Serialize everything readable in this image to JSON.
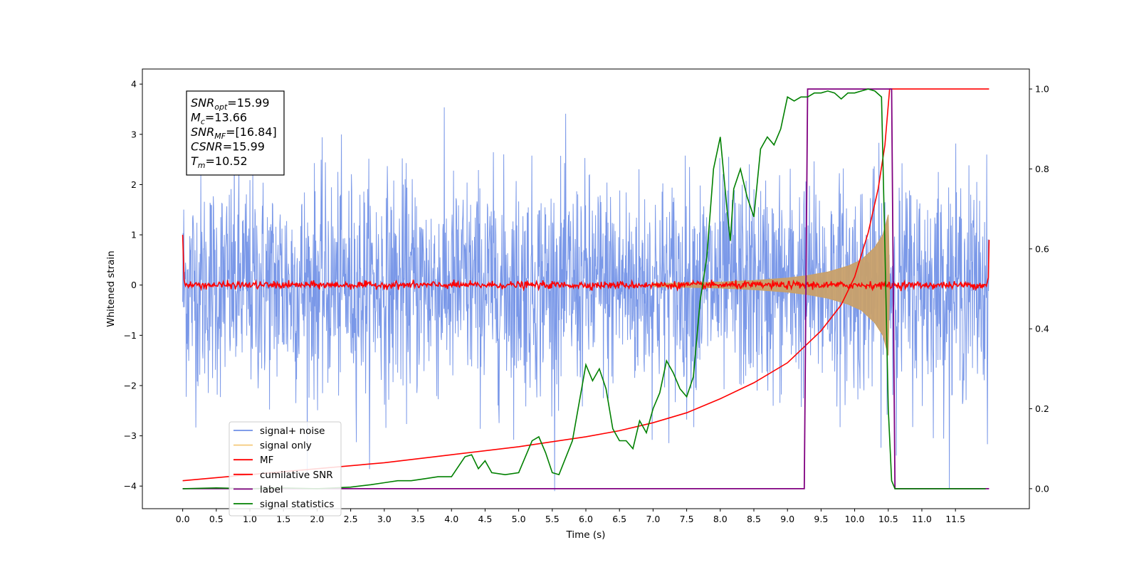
{
  "chart_data": {
    "type": "line",
    "xlabel": "Time (s)",
    "ylabel": "Whitened strain",
    "xlim": [
      -0.6,
      12.6
    ],
    "ylim_left": [
      -4.45,
      4.3
    ],
    "ylim_right": [
      -0.05,
      1.05
    ],
    "x_ticks": [
      "0.0",
      "0.5",
      "1.0",
      "1.5",
      "2.0",
      "2.5",
      "3.0",
      "3.5",
      "4.0",
      "4.5",
      "5.0",
      "5.5",
      "6.0",
      "6.5",
      "7.0",
      "7.5",
      "8.0",
      "8.5",
      "9.0",
      "9.5",
      "10.0",
      "10.5",
      "11.0",
      "11.5"
    ],
    "y_ticks_left": [
      "−4",
      "−3",
      "−2",
      "−1",
      "0",
      "1",
      "2",
      "3",
      "4"
    ],
    "y_ticks_right": [
      "0.0",
      "0.2",
      "0.4",
      "0.6",
      "0.8",
      "1.0"
    ],
    "annotation": {
      "lines": [
        {
          "main": "SNR",
          "sub": "opt",
          "rest": "=15.99"
        },
        {
          "main": "M",
          "sub": "c",
          "rest": "=13.66"
        },
        {
          "main": "SNR",
          "sub": "MF",
          "rest": "=[16.84]"
        },
        {
          "main": "CSNR",
          "sub": "",
          "rest": "=15.99"
        },
        {
          "main": "T",
          "sub": "m",
          "rest": "=10.52"
        }
      ]
    },
    "legend": {
      "placement": "lower-left",
      "entries": [
        {
          "label": "signal+ noise",
          "color": "#6f8fe6"
        },
        {
          "label": "signal only",
          "color": "#f5c97a"
        },
        {
          "label": "MF",
          "color": "#ff0000"
        },
        {
          "label": "cumilative SNR",
          "color": "#ff0000"
        },
        {
          "label": "label",
          "color": "#800080"
        },
        {
          "label": "signal statistics",
          "color": "#008000"
        }
      ]
    },
    "series": [
      {
        "name": "signal+ noise",
        "axis": "left",
        "color": "#6f8fe6",
        "style": "dense noise band",
        "amplitude": 1.5,
        "x_range": [
          0.0,
          12.0
        ]
      },
      {
        "name": "signal only",
        "axis": "left",
        "color": "#c8a06a",
        "style": "chirp envelope",
        "x": [
          7.0,
          8.0,
          8.5,
          9.0,
          9.3,
          9.6,
          9.9,
          10.1,
          10.3,
          10.42,
          10.5,
          10.52
        ],
        "envelope": [
          0.03,
          0.06,
          0.09,
          0.14,
          0.19,
          0.26,
          0.38,
          0.5,
          0.75,
          1.0,
          1.4,
          0.0
        ]
      },
      {
        "name": "MF",
        "axis": "left",
        "color": "#ff0000",
        "style": "small noise around zero",
        "amplitude": 0.08,
        "x_range": [
          0.0,
          12.0
        ]
      },
      {
        "name": "cumilative SNR",
        "axis": "right",
        "color": "#ff0000",
        "x": [
          0.0,
          1.0,
          2.0,
          3.0,
          4.0,
          5.0,
          6.0,
          6.5,
          7.0,
          7.5,
          8.0,
          8.5,
          9.0,
          9.5,
          9.8,
          10.0,
          10.2,
          10.35,
          10.45,
          10.52,
          11.0,
          11.5,
          12.0
        ],
        "y": [
          0.02,
          0.035,
          0.05,
          0.065,
          0.085,
          0.105,
          0.13,
          0.145,
          0.165,
          0.19,
          0.225,
          0.265,
          0.315,
          0.395,
          0.46,
          0.53,
          0.64,
          0.75,
          0.86,
          1.0,
          1.0,
          1.0,
          1.0
        ]
      },
      {
        "name": "label",
        "axis": "right",
        "color": "#800080",
        "x": [
          0.0,
          9.25,
          9.3,
          10.55,
          10.6,
          12.0
        ],
        "y": [
          0.0,
          0.0,
          1.0,
          1.0,
          0.0,
          0.0
        ]
      },
      {
        "name": "signal statistics",
        "axis": "right",
        "color": "#008000",
        "x": [
          0.0,
          0.5,
          1.0,
          1.5,
          2.0,
          2.5,
          2.8,
          3.0,
          3.2,
          3.4,
          3.6,
          3.8,
          4.0,
          4.2,
          4.3,
          4.4,
          4.5,
          4.6,
          4.8,
          5.0,
          5.2,
          5.3,
          5.4,
          5.5,
          5.6,
          5.8,
          6.0,
          6.1,
          6.2,
          6.3,
          6.4,
          6.5,
          6.6,
          6.7,
          6.8,
          6.9,
          7.0,
          7.1,
          7.2,
          7.3,
          7.4,
          7.5,
          7.6,
          7.7,
          7.8,
          7.9,
          8.0,
          8.1,
          8.15,
          8.2,
          8.3,
          8.4,
          8.5,
          8.6,
          8.7,
          8.8,
          8.9,
          9.0,
          9.1,
          9.2,
          9.3,
          9.4,
          9.5,
          9.6,
          9.7,
          9.8,
          9.9,
          10.0,
          10.1,
          10.2,
          10.3,
          10.4,
          10.45,
          10.5,
          10.55,
          10.6,
          11.0,
          11.5,
          11.95
        ],
        "y": [
          0.0,
          0.002,
          0.0,
          0.002,
          0.0,
          0.004,
          0.01,
          0.015,
          0.02,
          0.02,
          0.025,
          0.03,
          0.03,
          0.08,
          0.085,
          0.05,
          0.07,
          0.04,
          0.035,
          0.04,
          0.12,
          0.13,
          0.09,
          0.04,
          0.035,
          0.12,
          0.31,
          0.27,
          0.3,
          0.25,
          0.15,
          0.12,
          0.12,
          0.1,
          0.17,
          0.14,
          0.2,
          0.24,
          0.32,
          0.29,
          0.25,
          0.23,
          0.28,
          0.47,
          0.58,
          0.8,
          0.88,
          0.7,
          0.62,
          0.75,
          0.8,
          0.73,
          0.68,
          0.85,
          0.88,
          0.86,
          0.9,
          0.98,
          0.97,
          0.98,
          0.98,
          0.99,
          0.99,
          0.995,
          0.99,
          0.975,
          0.99,
          0.99,
          0.995,
          1.0,
          0.995,
          0.98,
          0.6,
          0.2,
          0.02,
          0.0,
          0.0,
          0.0,
          0.0
        ]
      }
    ],
    "grid": false
  }
}
